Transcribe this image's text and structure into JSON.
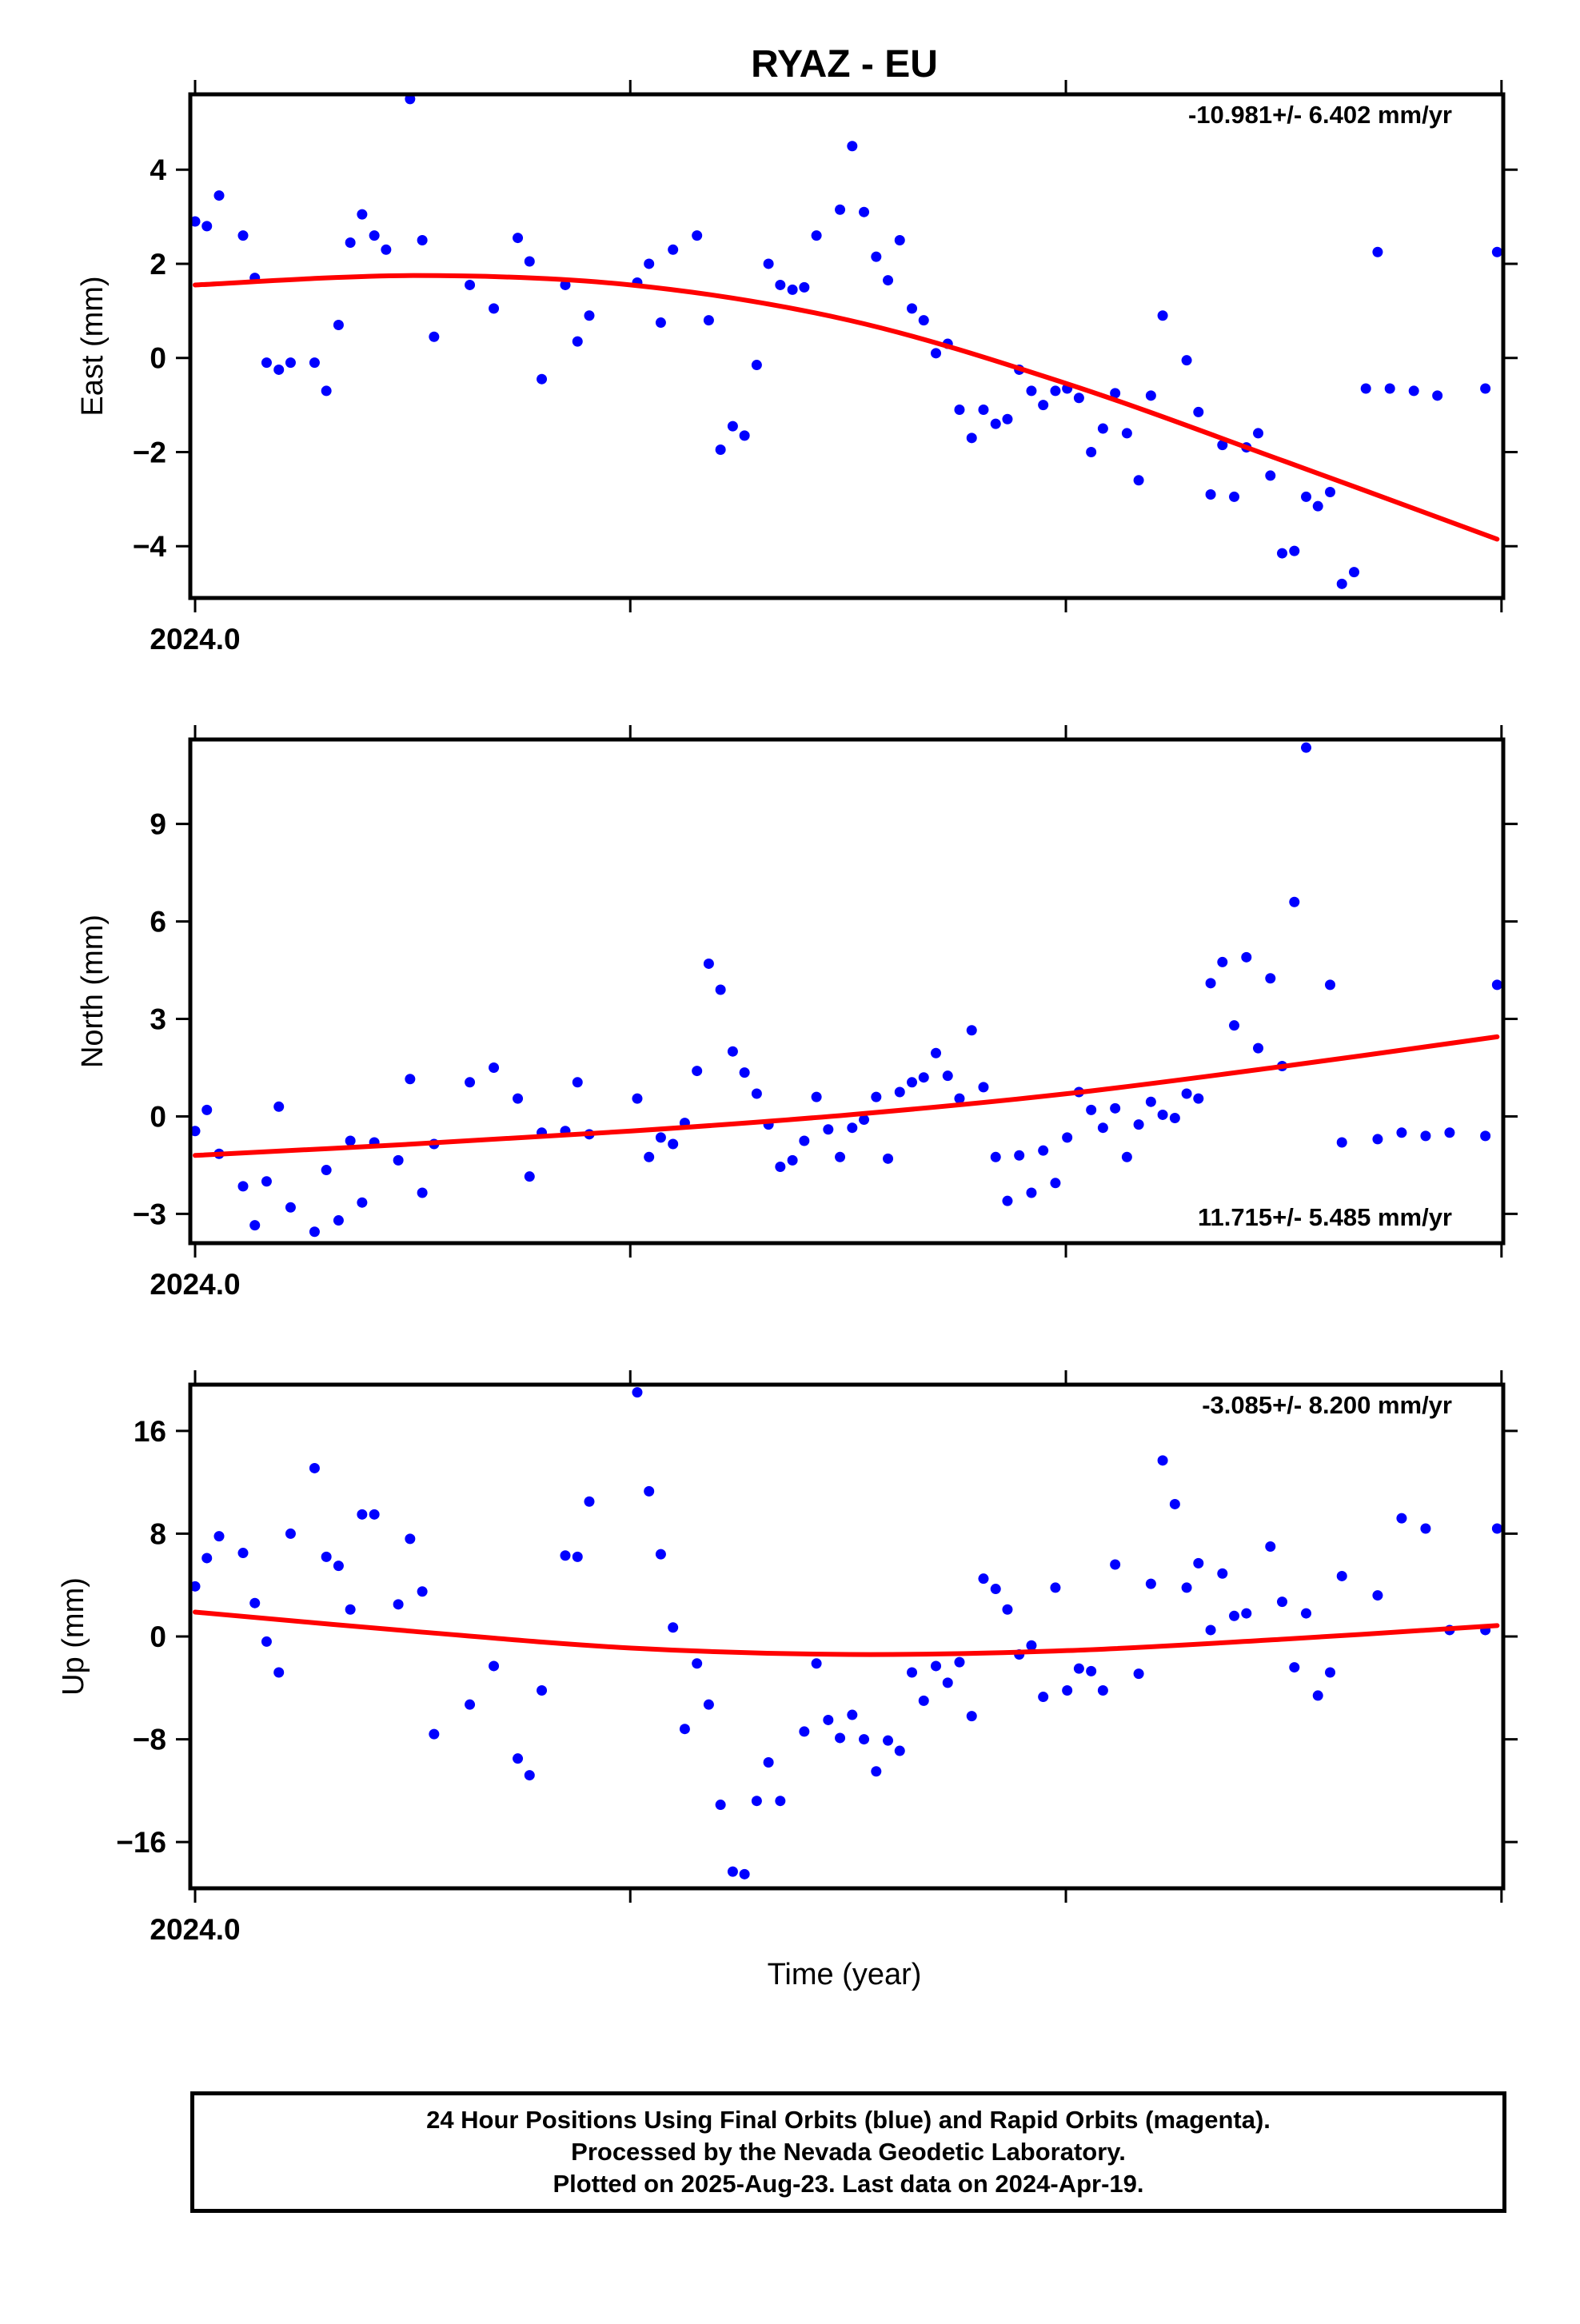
{
  "title": "RYAZ - EU",
  "xlabel": "Time (year)",
  "caption": {
    "line1": "24 Hour Positions Using Final Orbits (blue) and Rapid Orbits (magenta).",
    "line2": "Processed by the Nevada Geodetic Laboratory.",
    "line3": "Plotted on 2025-Aug-23. Last data on 2024-Apr-19."
  },
  "colors": {
    "final_orbit_points": "#0000ff",
    "fit_curve": "#ff0000",
    "frame": "#000000"
  },
  "chart_data": [
    {
      "type": "scatter",
      "ylabel": "East (mm)",
      "rate_label": "-10.981+/- 6.402 mm/yr",
      "rate_label_position": "top-right",
      "xlim": [
        2023.9989,
        2024.3
      ],
      "ylim": [
        -5.1,
        5.6
      ],
      "xtick_label": "2024.0",
      "yticks": [
        4,
        2,
        0,
        -2,
        -4
      ],
      "ytick_labels": [
        "4",
        "2",
        "0",
        "−2",
        "−4"
      ],
      "grid": false,
      "series": [
        {
          "color": "#0000ff",
          "x": [
            2024.0,
            2024.0027,
            2024.0055,
            2024.011,
            2024.0137,
            2024.0164,
            2024.0192,
            2024.0219,
            2024.0274,
            2024.0301,
            2024.0329,
            2024.0356,
            2024.0383,
            2024.0411,
            2024.0438,
            2024.0493,
            2024.0521,
            2024.0548,
            2024.063,
            2024.0685,
            2024.074,
            2024.0767,
            2024.0795,
            2024.0849,
            2024.0877,
            2024.0904,
            2024.1014,
            2024.1041,
            2024.1068,
            2024.1096,
            2024.1151,
            2024.1178,
            2024.1205,
            2024.1233,
            2024.126,
            2024.1288,
            2024.1315,
            2024.1342,
            2024.137,
            2024.1397,
            2024.1425,
            2024.1479,
            2024.1507,
            2024.1534,
            2024.1562,
            2024.1589,
            2024.1616,
            2024.1644,
            2024.1671,
            2024.1699,
            2024.1726,
            2024.1753,
            2024.1781,
            2024.1808,
            2024.1836,
            2024.1863,
            2024.189,
            2024.1918,
            2024.1945,
            2024.1973,
            2024.2,
            2024.2027,
            2024.2055,
            2024.2082,
            2024.211,
            2024.2137,
            2024.2164,
            2024.2192,
            2024.2219,
            2024.2274,
            2024.2301,
            2024.2329,
            2024.2356,
            2024.2383,
            2024.2411,
            2024.2438,
            2024.2466,
            2024.2493,
            2024.2521,
            2024.2548,
            2024.2575,
            2024.2603,
            2024.263,
            2024.2658,
            2024.2685,
            2024.2712,
            2024.274,
            2024.2795,
            2024.2849,
            2024.2959,
            2024.2986
          ],
          "y": [
            2.9,
            2.8,
            3.45,
            2.6,
            1.7,
            -0.1,
            -0.25,
            -0.1,
            -0.1,
            -0.7,
            0.7,
            2.45,
            3.05,
            2.6,
            2.3,
            5.5,
            2.5,
            0.45,
            1.55,
            1.05,
            2.55,
            2.05,
            -0.45,
            1.55,
            0.35,
            0.9,
            1.6,
            2.0,
            0.75,
            2.3,
            2.6,
            0.8,
            -1.95,
            -1.45,
            -1.65,
            -0.15,
            2.0,
            1.55,
            1.45,
            1.5,
            2.6,
            3.15,
            4.5,
            3.1,
            2.15,
            1.65,
            2.5,
            1.05,
            0.8,
            0.1,
            0.3,
            -1.1,
            -1.7,
            -1.1,
            -1.4,
            -1.3,
            -0.25,
            -0.7,
            -1.0,
            -0.7,
            -0.65,
            -0.85,
            -2.0,
            -1.5,
            -0.75,
            -1.6,
            -2.6,
            -0.8,
            0.9,
            -0.05,
            -1.15,
            -2.9,
            -1.85,
            -2.95,
            -1.9,
            -1.6,
            -2.5,
            -4.15,
            -4.1,
            -2.95,
            -3.15,
            -2.85,
            -4.8,
            -4.55,
            -0.65,
            2.25,
            -0.65,
            -0.7,
            -0.8,
            -0.65,
            2.25
          ]
        }
      ],
      "fit": {
        "color": "#ff0000",
        "x": [
          2024.0,
          2024.05,
          2024.1,
          2024.15,
          2024.2,
          2024.25,
          2024.2986
        ],
        "y": [
          1.55,
          1.75,
          1.55,
          0.8,
          -0.55,
          -2.2,
          -3.85
        ]
      }
    },
    {
      "type": "scatter",
      "ylabel": "North (mm)",
      "rate_label": "11.715+/- 5.485 mm/yr",
      "rate_label_position": "bottom-right",
      "xlim": [
        2023.9989,
        2024.3
      ],
      "ylim": [
        -3.9,
        11.6
      ],
      "xtick_label": "2024.0",
      "yticks": [
        9,
        6,
        3,
        0,
        -3
      ],
      "ytick_labels": [
        "9",
        "6",
        "3",
        "0",
        "−3"
      ],
      "grid": false,
      "series": [
        {
          "color": "#0000ff",
          "x": [
            2024.0,
            2024.0027,
            2024.0055,
            2024.011,
            2024.0137,
            2024.0164,
            2024.0192,
            2024.0219,
            2024.0274,
            2024.0301,
            2024.0329,
            2024.0356,
            2024.0383,
            2024.0411,
            2024.0466,
            2024.0493,
            2024.0521,
            2024.0548,
            2024.063,
            2024.0685,
            2024.074,
            2024.0767,
            2024.0795,
            2024.0849,
            2024.0877,
            2024.0904,
            2024.1014,
            2024.1041,
            2024.1068,
            2024.1096,
            2024.1123,
            2024.1151,
            2024.1178,
            2024.1205,
            2024.1233,
            2024.126,
            2024.1288,
            2024.1315,
            2024.1342,
            2024.137,
            2024.1397,
            2024.1425,
            2024.1452,
            2024.1479,
            2024.1507,
            2024.1534,
            2024.1562,
            2024.1589,
            2024.1616,
            2024.1644,
            2024.1671,
            2024.1699,
            2024.1726,
            2024.1753,
            2024.1781,
            2024.1808,
            2024.1836,
            2024.1863,
            2024.189,
            2024.1918,
            2024.1945,
            2024.1973,
            2024.2,
            2024.2027,
            2024.2055,
            2024.2082,
            2024.211,
            2024.2137,
            2024.2164,
            2024.2192,
            2024.2219,
            2024.2247,
            2024.2274,
            2024.2301,
            2024.2329,
            2024.2356,
            2024.2383,
            2024.2411,
            2024.2438,
            2024.2466,
            2024.2493,
            2024.2521,
            2024.2548,
            2024.2603,
            2024.263,
            2024.2712,
            2024.2767,
            2024.2822,
            2024.2877,
            2024.2959,
            2024.2986
          ],
          "y": [
            -0.45,
            0.2,
            -1.15,
            -2.15,
            -3.35,
            -2.0,
            0.3,
            -2.8,
            -3.55,
            -1.65,
            -3.2,
            -0.75,
            -2.65,
            -0.8,
            -1.35,
            1.15,
            -2.35,
            -0.85,
            1.05,
            1.5,
            0.55,
            -1.85,
            -0.5,
            -0.45,
            1.05,
            -0.55,
            0.55,
            -1.25,
            -0.65,
            -0.85,
            -0.2,
            1.4,
            4.7,
            3.9,
            2.0,
            1.35,
            0.7,
            -0.25,
            -1.55,
            -1.35,
            -0.75,
            0.6,
            -0.4,
            -1.25,
            -0.35,
            -0.1,
            0.6,
            -1.3,
            0.75,
            1.05,
            1.2,
            1.95,
            1.25,
            0.55,
            2.65,
            0.9,
            -1.25,
            -2.6,
            -1.2,
            -2.35,
            -1.05,
            -2.05,
            -0.65,
            0.75,
            0.2,
            -0.35,
            0.25,
            -1.25,
            -0.25,
            0.45,
            0.05,
            -0.05,
            0.7,
            0.55,
            4.1,
            4.75,
            2.8,
            4.9,
            2.1,
            4.25,
            1.55,
            6.6,
            11.35,
            4.05,
            -0.8,
            -0.7,
            -0.5,
            -0.6,
            -0.5,
            -0.6,
            4.05
          ]
        }
      ],
      "fit": {
        "color": "#ff0000",
        "x": [
          2024.0,
          2024.05,
          2024.1,
          2024.15,
          2024.2,
          2024.25,
          2024.2986
        ],
        "y": [
          -1.2,
          -0.85,
          -0.45,
          0.05,
          0.7,
          1.55,
          2.45
        ]
      }
    },
    {
      "type": "scatter",
      "ylabel": "Up (mm)",
      "rate_label": "-3.085+/- 8.200 mm/yr",
      "rate_label_position": "top-right",
      "xlim": [
        2023.9989,
        2024.3
      ],
      "ylim": [
        -19.6,
        19.6
      ],
      "xtick_label": "2024.0",
      "yticks": [
        16,
        8,
        0,
        -8,
        -16
      ],
      "ytick_labels": [
        "16",
        "8",
        "0",
        "−8",
        "−16"
      ],
      "grid": false,
      "series": [
        {
          "color": "#0000ff",
          "x": [
            2024.0,
            2024.0027,
            2024.0055,
            2024.011,
            2024.0137,
            2024.0164,
            2024.0192,
            2024.0219,
            2024.0274,
            2024.0301,
            2024.0329,
            2024.0356,
            2024.0383,
            2024.0411,
            2024.0466,
            2024.0493,
            2024.0521,
            2024.0548,
            2024.063,
            2024.0685,
            2024.074,
            2024.0767,
            2024.0795,
            2024.0849,
            2024.0877,
            2024.0904,
            2024.1014,
            2024.1041,
            2024.1068,
            2024.1096,
            2024.1123,
            2024.1151,
            2024.1178,
            2024.1205,
            2024.1233,
            2024.126,
            2024.1288,
            2024.1315,
            2024.1342,
            2024.1397,
            2024.1425,
            2024.1452,
            2024.1479,
            2024.1507,
            2024.1534,
            2024.1562,
            2024.1589,
            2024.1616,
            2024.1644,
            2024.1671,
            2024.1699,
            2024.1726,
            2024.1753,
            2024.1781,
            2024.1808,
            2024.1836,
            2024.1863,
            2024.189,
            2024.1918,
            2024.1945,
            2024.1973,
            2024.2,
            2024.2027,
            2024.2055,
            2024.2082,
            2024.211,
            2024.2164,
            2024.2192,
            2024.2219,
            2024.2247,
            2024.2274,
            2024.2301,
            2024.2329,
            2024.2356,
            2024.2383,
            2024.2411,
            2024.2466,
            2024.2493,
            2024.2521,
            2024.2548,
            2024.2575,
            2024.2603,
            2024.263,
            2024.2712,
            2024.2767,
            2024.2822,
            2024.2877,
            2024.2959,
            2024.2986
          ],
          "y": [
            3.9,
            6.1,
            7.8,
            6.5,
            2.6,
            -0.4,
            -2.8,
            8.0,
            13.1,
            6.2,
            5.5,
            2.1,
            9.5,
            9.5,
            2.5,
            7.6,
            3.5,
            -7.6,
            -5.3,
            -2.3,
            -9.5,
            -10.8,
            -4.2,
            6.3,
            6.2,
            10.5,
            19.0,
            11.3,
            6.4,
            0.7,
            -7.2,
            -2.1,
            -5.3,
            -13.1,
            -18.3,
            -18.5,
            -12.8,
            -9.8,
            -12.8,
            -7.4,
            -2.1,
            -6.5,
            -7.9,
            -6.1,
            -8.0,
            -10.5,
            -8.1,
            -8.9,
            -2.8,
            -5.0,
            -2.3,
            -3.6,
            -2.0,
            -6.2,
            4.5,
            3.7,
            2.1,
            -1.4,
            -0.7,
            -4.7,
            3.8,
            -4.2,
            -2.5,
            -2.7,
            -4.2,
            5.6,
            -2.9,
            4.1,
            13.7,
            10.3,
            3.8,
            5.7,
            0.5,
            4.9,
            1.6,
            1.8,
            7.0,
            2.7,
            -2.4,
            1.8,
            -4.6,
            -2.8,
            4.7,
            3.2,
            9.2,
            8.4,
            0.5,
            0.5,
            8.4
          ]
        }
      ],
      "fit": {
        "color": "#ff0000",
        "x": [
          2024.0,
          2024.05,
          2024.1,
          2024.15,
          2024.2,
          2024.25,
          2024.2986
        ],
        "y": [
          1.9,
          0.4,
          -0.9,
          -1.4,
          -1.1,
          -0.2,
          0.85
        ]
      }
    }
  ]
}
